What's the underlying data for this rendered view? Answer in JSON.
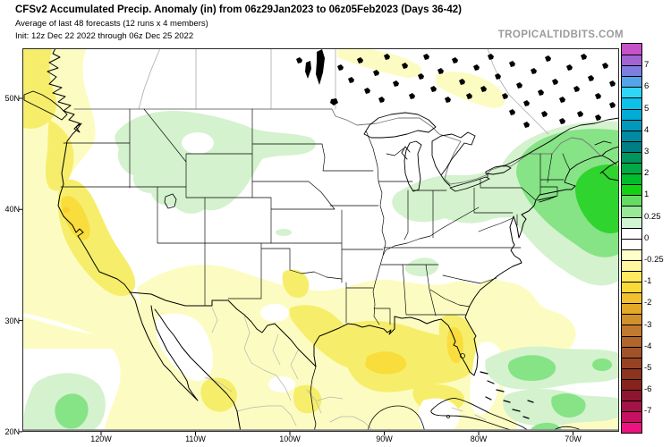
{
  "header": {
    "title": "CFSv2 Accumulated Precip. Anomaly (in) from 06z29Jan2023 to 06z05Feb2023 (Days 36-42)",
    "subtitle": "Average of last 48 forecasts (12 runs x 4 members)",
    "init_line": "Init: 12z Dec 22 2022 through 06z Dec 25 2022",
    "watermark": "TROPICALTIDBITS.COM"
  },
  "axes": {
    "lat_labels": [
      "50N",
      "40N",
      "30N",
      "20N"
    ],
    "lon_labels": [
      "120W",
      "110W",
      "100W",
      "90W",
      "80W",
      "70W"
    ]
  },
  "colorbar": {
    "labels": [
      "7",
      "6",
      "5",
      "4",
      "3",
      "2",
      "1",
      "0.25",
      "0",
      "-0.25",
      "-1",
      "-2",
      "-3",
      "-4",
      "-5",
      "-6",
      "-7"
    ],
    "cells": [
      "#c651c9",
      "#a263d3",
      "#7e7de0",
      "#55a3e8",
      "#2fd7f7",
      "#0dc1e9",
      "#02acd4",
      "#0098bb",
      "#008ba2",
      "#007e84",
      "#00965d",
      "#00a945",
      "#00bd2e",
      "#13d113",
      "#64dc64",
      "#98e898",
      "#d1f4d1",
      "#ffffff",
      "#ffffff",
      "#ffffc9",
      "#fff8a1",
      "#ffe95f",
      "#fbd938",
      "#f3bf2c",
      "#e3a826",
      "#d0902b",
      "#c0792e",
      "#b1652b",
      "#a25228",
      "#974323",
      "#8e331e",
      "#86231a",
      "#8e1530",
      "#a41346",
      "#c51161",
      "#ec1381"
    ]
  },
  "palette": {
    "pale_yellow": "#fcfcc2",
    "yellow": "#f6ee6b",
    "gold": "#f8dd3c",
    "deep_gold": "#fbcf2b",
    "pale_green": "#d3f2cd",
    "med_green": "#86e386",
    "bright_green": "#2fd42f",
    "white": "#ffffff",
    "land_line": "#000000",
    "intl_line": "#777777",
    "province_line": "#ababab",
    "mexico_line": "#b4b4b4",
    "frame": "#2a2a2a",
    "axis_gray": "#858585",
    "watermark_gray": "#9b9b9b"
  },
  "map_regions": [
    {
      "area": "British Columbia / Pacific Northwest coast",
      "anomaly_in": "-0.25 to -1"
    },
    {
      "area": "California and adjacent Pacific",
      "anomaly_in": "-1 to -2"
    },
    {
      "area": "Montana / northern Rockies",
      "anomaly_in": "0 to +0.25"
    },
    {
      "area": "Southern Plains, Texas and northern Mexico",
      "anomaly_in": "-0.25 to -1"
    },
    {
      "area": "Gulf of Mexico and Florida",
      "anomaly_in": "-1 to -2"
    },
    {
      "area": "Ohio Valley / Great Lakes / interior Northeast",
      "anomaly_in": "0 to +0.25"
    },
    {
      "area": "New England, Canadian Maritimes, NW Atlantic",
      "anomaly_in": "+0.25 to +2"
    },
    {
      "area": "Subtropical Atlantic east of the Bahamas",
      "anomaly_in": "+0.25 to +1"
    },
    {
      "area": "Eastern Pacific southwest of Baja California",
      "anomaly_in": "+0.25 to +1"
    },
    {
      "area": "South-central Canada and Ontario",
      "anomaly_in": "-0.25 to -1 patches"
    }
  ]
}
